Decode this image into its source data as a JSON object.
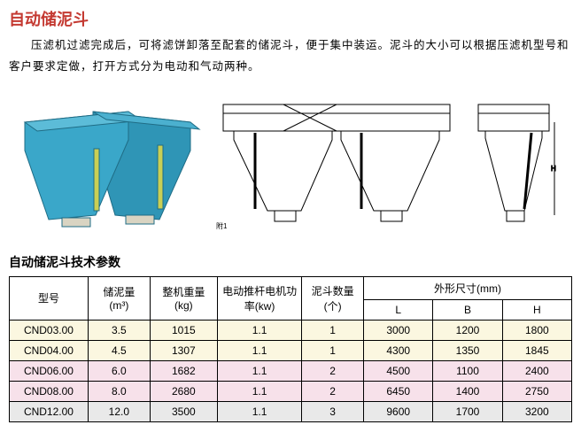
{
  "title": {
    "text": "自动储泥斗",
    "color": "#c43a32"
  },
  "description": "压滤机过滤完成后，可将滤饼卸落至配套的储泥斗，便于集中装运。泥斗的大小可以根据压滤机型号和客户要求定做，打开方式分为电动和气动两种。",
  "subtitle": "自动储泥斗技术参数",
  "figures": {
    "photo": {
      "fill": "#2f95b6",
      "stroke": "#1f6c85"
    },
    "drawing": {
      "stroke": "#000000",
      "fill": "none"
    }
  },
  "table": {
    "columns": [
      {
        "key": "model",
        "label": "型号"
      },
      {
        "key": "volume",
        "label": "储泥量",
        "unit": "(m³)"
      },
      {
        "key": "weight",
        "label": "整机重量",
        "unit": "(kg)"
      },
      {
        "key": "power",
        "label": "电动推杆电机功率(kw)"
      },
      {
        "key": "count",
        "label": "泥斗数量",
        "unit": "(个)"
      },
      {
        "key": "dims",
        "label": "外形尺寸(mm)",
        "sub": [
          "L",
          "B",
          "H"
        ]
      }
    ],
    "col_widths_pct": [
      14,
      11,
      12,
      15,
      11,
      37
    ],
    "row_colors": {
      "yellow": "#fbf7e0",
      "pink": "#f7e1ea",
      "gray": "#e9e9e9"
    },
    "rows": [
      {
        "bg": "yellow",
        "model": "CND03.00",
        "volume": "3.5",
        "weight": "1015",
        "power": "1.1",
        "count": "1",
        "L": "3000",
        "B": "1200",
        "H": "1800"
      },
      {
        "bg": "yellow",
        "model": "CND04.00",
        "volume": "4.5",
        "weight": "1307",
        "power": "1.1",
        "count": "1",
        "L": "4300",
        "B": "1350",
        "H": "1845"
      },
      {
        "bg": "pink",
        "model": "CND06.00",
        "volume": "6.0",
        "weight": "1682",
        "power": "1.1",
        "count": "2",
        "L": "4500",
        "B": "1100",
        "H": "2400"
      },
      {
        "bg": "pink",
        "model": "CND08.00",
        "volume": "8.0",
        "weight": "2680",
        "power": "1.1",
        "count": "2",
        "L": "6450",
        "B": "1400",
        "H": "2750"
      },
      {
        "bg": "gray",
        "model": "CND12.00",
        "volume": "12.0",
        "weight": "3500",
        "power": "1.1",
        "count": "3",
        "L": "9600",
        "B": "1700",
        "H": "3200"
      }
    ]
  }
}
